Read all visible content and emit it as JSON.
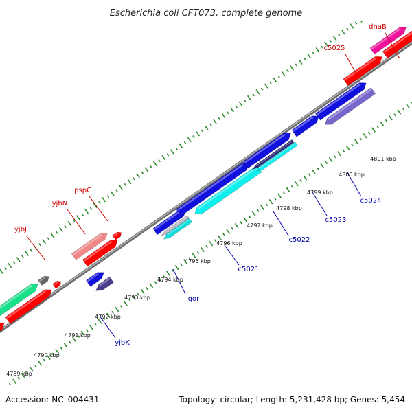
{
  "title": "Escherichia coli CFT073, complete genome",
  "footer": {
    "accession": "Accession: NC_004431",
    "topology": "Topology: circular; Length: 5,231,428 bp; Genes: 5,454"
  },
  "colors": {
    "backbone": "#8a8a8a",
    "ticks": "#2e8b2e",
    "forward_label": "#cc0000",
    "reverse_label": "#0000aa"
  },
  "kbp_labels": [
    "4789 kbp",
    "4790 kbp",
    "4791 kbp",
    "4792 kbp",
    "4793 kbp",
    "4794 kbp",
    "4795 kbp",
    "4796 kbp",
    "4797 kbp",
    "4798 kbp",
    "4799 kbp",
    "4800 kbp",
    "4801 kbp"
  ],
  "genes": [
    {
      "id": "yjbJ",
      "label": "yjbJ",
      "strand": "forward"
    },
    {
      "id": "yjbN",
      "label": "yjbN",
      "strand": "forward"
    },
    {
      "id": "pspG",
      "label": "pspG",
      "strand": "forward"
    },
    {
      "id": "c5025",
      "label": "c5025",
      "strand": "forward"
    },
    {
      "id": "dnaB",
      "label": "dnaB",
      "strand": "forward"
    },
    {
      "id": "yjbK",
      "label": "yjbK",
      "strand": "reverse"
    },
    {
      "id": "qor",
      "label": "qor",
      "strand": "reverse"
    },
    {
      "id": "c5021",
      "label": "c5021",
      "strand": "reverse"
    },
    {
      "id": "c5022",
      "label": "c5022",
      "strand": "reverse"
    },
    {
      "id": "c5023",
      "label": "c5023",
      "strand": "reverse"
    },
    {
      "id": "c5024",
      "label": "c5024",
      "strand": "reverse"
    }
  ]
}
